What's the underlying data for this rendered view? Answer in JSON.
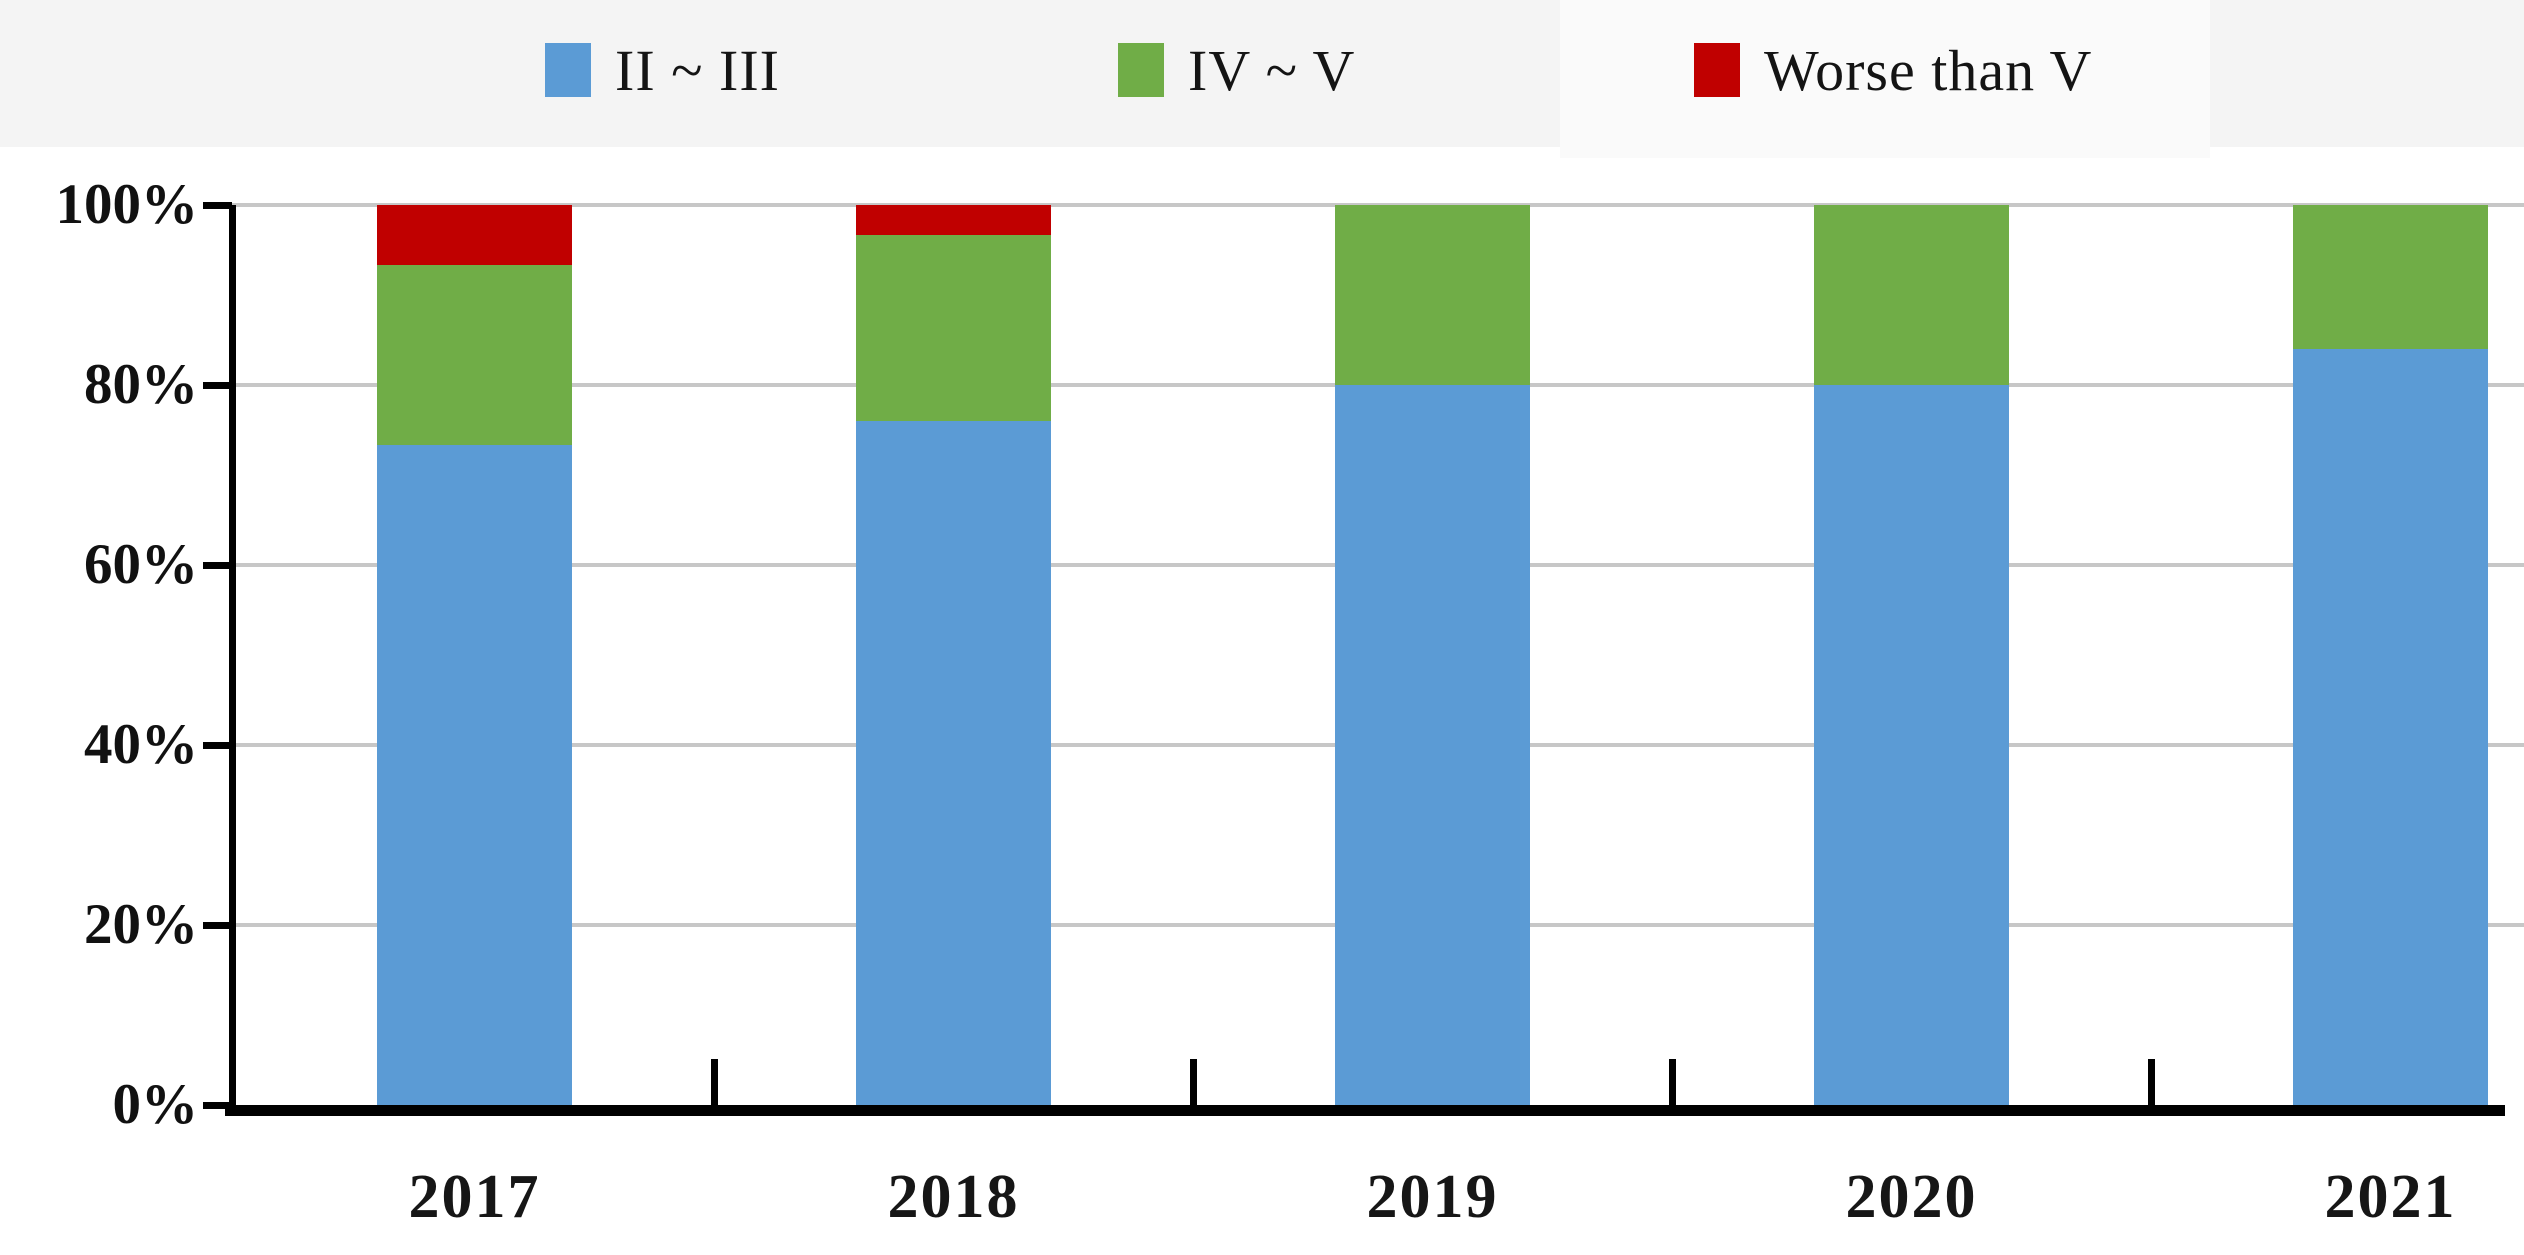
{
  "legend": {
    "items": [
      {
        "label": "II ~ III",
        "color": "#5b9bd5"
      },
      {
        "label": "IV ~ V",
        "color": "#70ad47"
      },
      {
        "label": "Worse than V",
        "color": "#c00000"
      }
    ]
  },
  "chart_data": {
    "type": "bar",
    "stacked": true,
    "percent_stacked": true,
    "title": "",
    "xlabel": "",
    "ylabel": "",
    "categories": [
      "2017",
      "2018",
      "2019",
      "2020",
      "2021"
    ],
    "series": [
      {
        "name": "II ~ III",
        "color": "#5b9bd5",
        "values": [
          73.3,
          76.0,
          80.0,
          80.0,
          84.0
        ]
      },
      {
        "name": "IV ~ V",
        "color": "#70ad47",
        "values": [
          20.0,
          20.7,
          20.0,
          20.0,
          16.0
        ]
      },
      {
        "name": "Worse than V",
        "color": "#c00000",
        "values": [
          6.7,
          3.3,
          0.0,
          0.0,
          0.0
        ]
      }
    ],
    "yaxis": {
      "min": 0,
      "max": 100,
      "tick_labels": [
        "0%",
        "20%",
        "40%",
        "60%",
        "80%",
        "100%"
      ],
      "tick_values": [
        0,
        20,
        40,
        60,
        80,
        100
      ]
    },
    "grid": true,
    "gridlines": "horizontal",
    "legend_position": "top"
  }
}
